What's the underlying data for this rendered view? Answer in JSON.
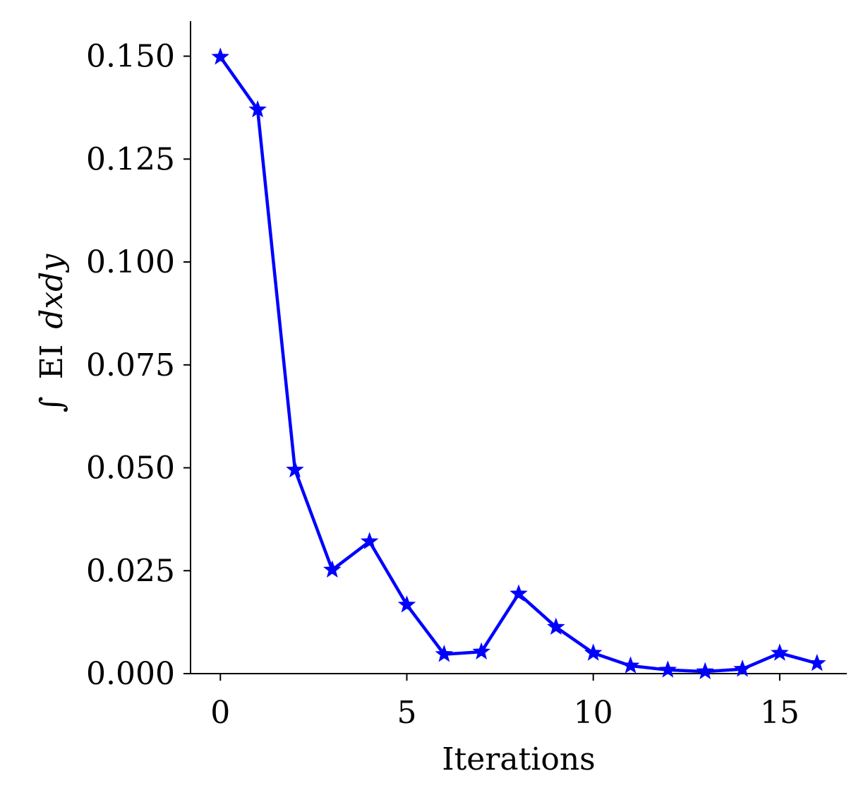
{
  "chart_data": {
    "type": "line",
    "title": "",
    "xlabel": "Iterations",
    "ylabel": "∫ EI dxdy",
    "ylabel_parts": {
      "integral": "∫",
      "text": "EI",
      "math": "dxdy"
    },
    "xlim": [
      -0.8,
      16.8
    ],
    "ylim": [
      0,
      0.1585
    ],
    "x_ticks": [
      0,
      5,
      10,
      15
    ],
    "x_tick_labels": [
      "0",
      "5",
      "10",
      "15"
    ],
    "y_ticks": [
      0,
      0.025,
      0.05,
      0.075,
      0.1,
      0.125,
      0.15
    ],
    "y_tick_labels": [
      "0.000",
      "0.025",
      "0.050",
      "0.075",
      "0.100",
      "0.125",
      "0.150"
    ],
    "grid": false,
    "legend": "none",
    "marker": "star",
    "color": "#0000ff",
    "series": [
      {
        "x": [
          0,
          1,
          2,
          3,
          4,
          5,
          6,
          7,
          8,
          9,
          10,
          11,
          12,
          13,
          14,
          15,
          16
        ],
        "values": [
          0.1498,
          0.137,
          0.0495,
          0.0252,
          0.0321,
          0.0167,
          0.0047,
          0.0053,
          0.0194,
          0.0113,
          0.005,
          0.0019,
          0.0009,
          0.0005,
          0.0011,
          0.005,
          0.0025
        ]
      }
    ]
  }
}
